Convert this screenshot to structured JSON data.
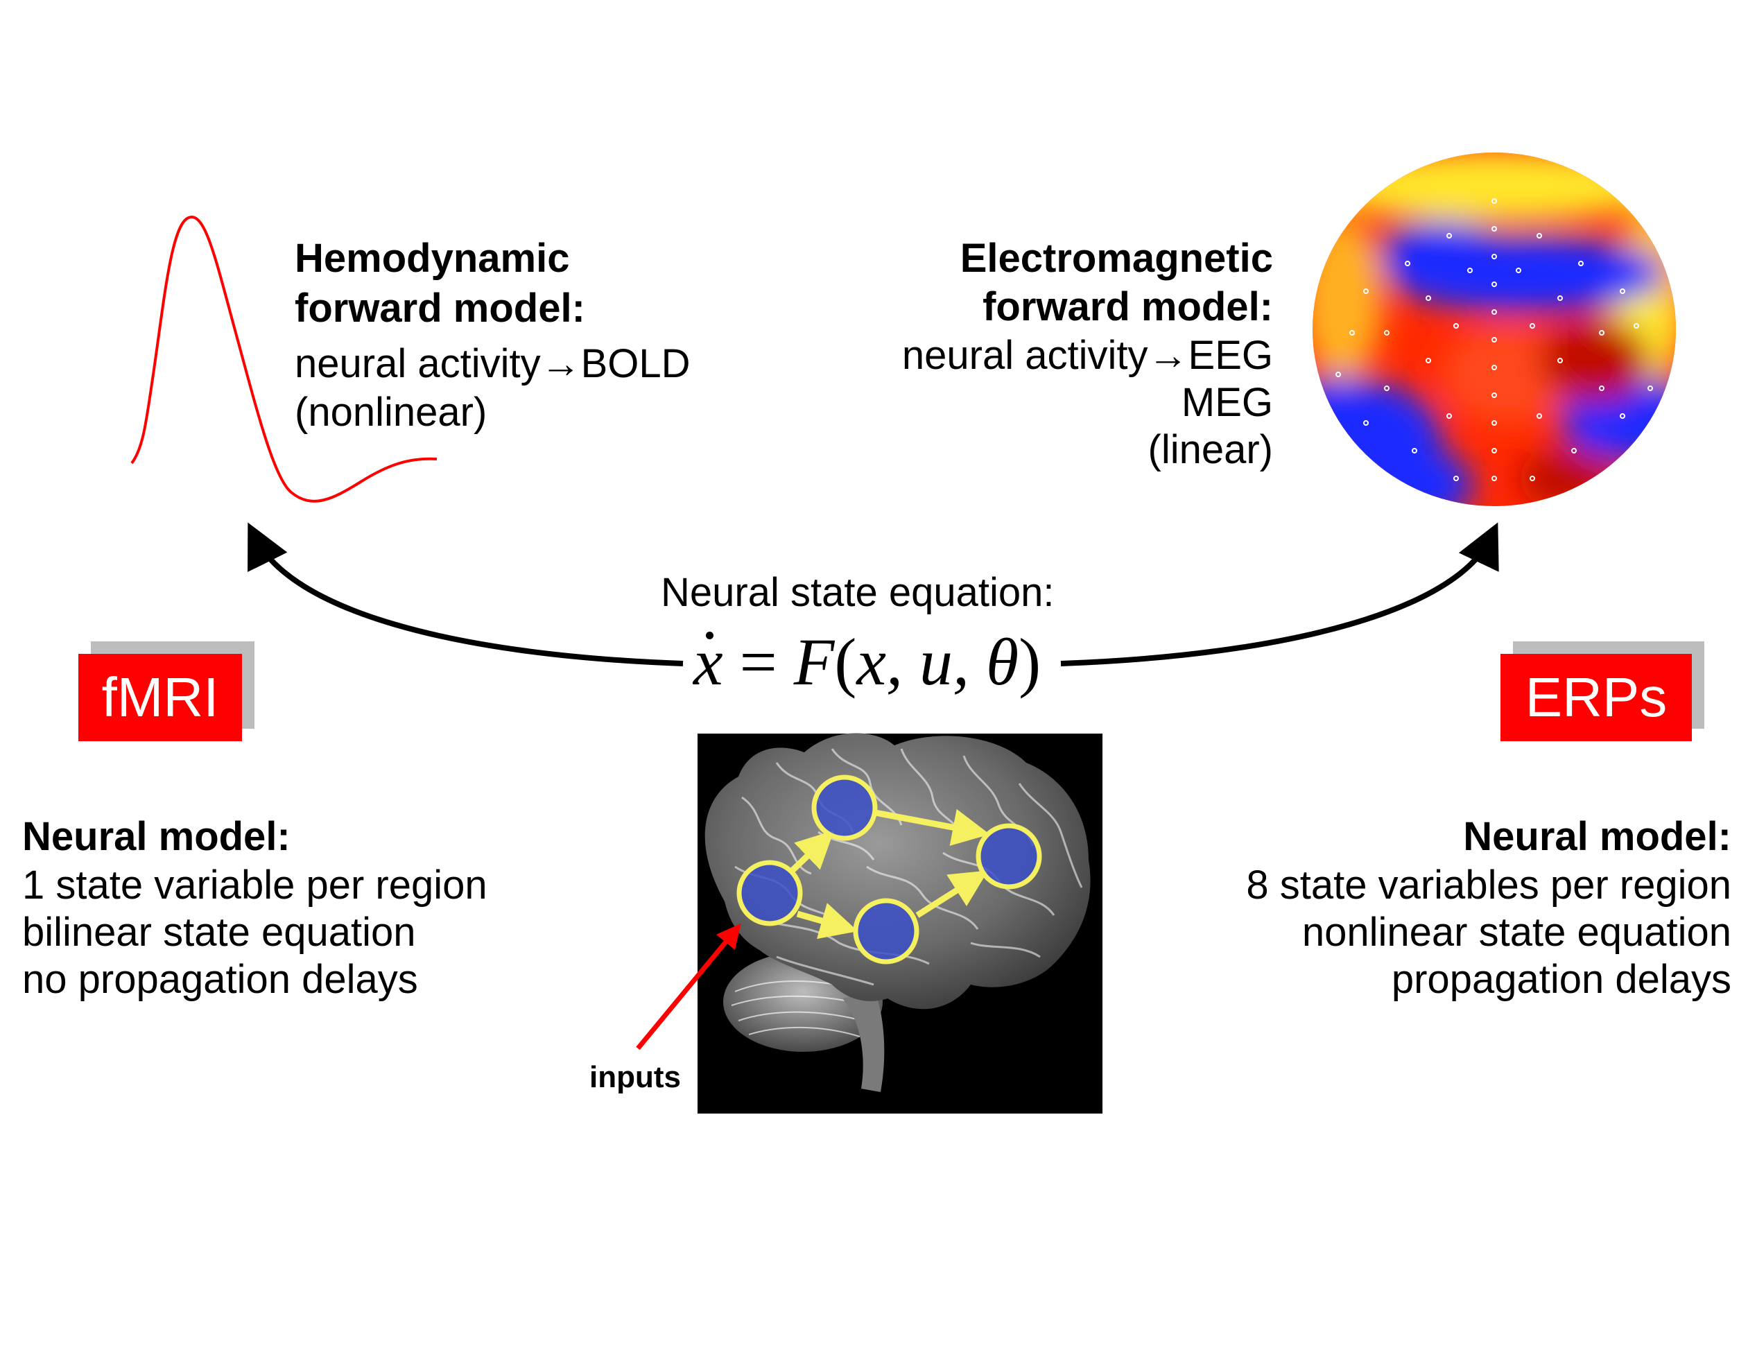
{
  "fmri": {
    "badge": "fMRI",
    "forward_title_1": "Hemodynamic",
    "forward_title_2": "forward model:",
    "forward_line_1": "neural activity→BOLD",
    "forward_line_2": "(nonlinear)",
    "neural_title": "Neural model:",
    "neural_line_1": "1 state variable per region",
    "neural_line_2": "bilinear state equation",
    "neural_line_3": "no propagation delays"
  },
  "erp": {
    "badge": "ERPs",
    "forward_title_1": "Electromagnetic",
    "forward_title_2": "forward model:",
    "forward_line_1": "neural activity→EEG",
    "forward_line_2": "MEG",
    "forward_line_3": "(linear)",
    "neural_title": "Neural model:",
    "neural_line_1": "8 state variables per region",
    "neural_line_2": "nonlinear state equation",
    "neural_line_3": "propagation delays"
  },
  "center": {
    "equation_title": "Neural state equation:",
    "equation": {
      "lhs": "x",
      "equals": " = ",
      "func": "F",
      "args_open": "(",
      "args": "x, u, θ",
      "args_close": ")"
    },
    "inputs_label": "inputs"
  },
  "colors": {
    "badge_red": "#ff0000",
    "badge_shadow": "#bdbdbd",
    "bold_curve": "#ff0000",
    "input_arrow": "#ff0000",
    "region_fill": "#3b4fc8",
    "region_ring": "#f5f060",
    "connection_arrow": "#f5f060"
  }
}
